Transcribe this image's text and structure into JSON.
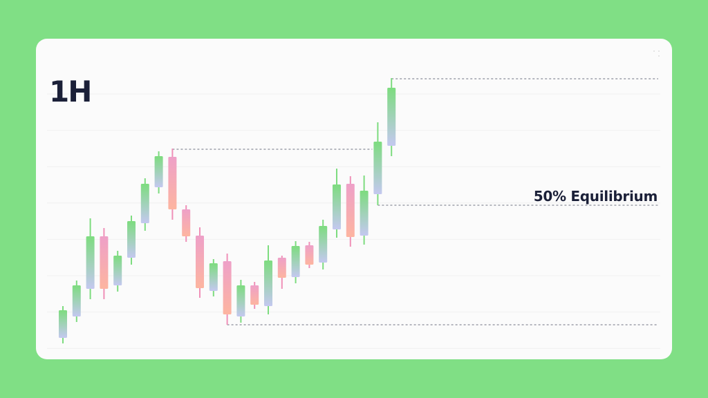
{
  "timeframe_label": "1H",
  "equilibrium_label": "50% Equilibrium",
  "colors": {
    "background": "#80df85",
    "card": "#fbfbfb",
    "bull_top": "#7ddc7f",
    "bull_bottom": "#c4c8f0",
    "bear_top": "#eea0c8",
    "bear_bottom": "#fdb5a0",
    "bull_wick": "#7ddc7f",
    "bear_wick": "#f090b8",
    "level_line": "#8a8d99",
    "text": "#1b2038"
  },
  "chart_data": {
    "type": "candlestick",
    "title": "1H",
    "grid": true,
    "candles": [
      {
        "o": 31,
        "h": 77,
        "l": 23,
        "c": 71
      },
      {
        "o": 62,
        "h": 114,
        "l": 54,
        "c": 107
      },
      {
        "o": 102,
        "h": 204,
        "l": 87,
        "c": 178
      },
      {
        "o": 178,
        "h": 190,
        "l": 87,
        "c": 102
      },
      {
        "o": 107,
        "h": 157,
        "l": 98,
        "c": 150
      },
      {
        "o": 147,
        "h": 208,
        "l": 137,
        "c": 200
      },
      {
        "o": 197,
        "h": 262,
        "l": 186,
        "c": 254
      },
      {
        "o": 249,
        "h": 301,
        "l": 240,
        "c": 294
      },
      {
        "o": 293,
        "h": 305,
        "l": 202,
        "c": 217
      },
      {
        "o": 217,
        "h": 223,
        "l": 170,
        "c": 178
      },
      {
        "o": 179,
        "h": 191,
        "l": 89,
        "c": 103
      },
      {
        "o": 99,
        "h": 145,
        "l": 91,
        "c": 139
      },
      {
        "o": 142,
        "h": 153,
        "l": 50,
        "c": 65
      },
      {
        "o": 62,
        "h": 115,
        "l": 53,
        "c": 107
      },
      {
        "o": 107,
        "h": 112,
        "l": 73,
        "c": 79
      },
      {
        "o": 77,
        "h": 165,
        "l": 65,
        "c": 143
      },
      {
        "o": 147,
        "h": 150,
        "l": 102,
        "c": 118
      },
      {
        "o": 119,
        "h": 171,
        "l": 110,
        "c": 164
      },
      {
        "o": 165,
        "h": 170,
        "l": 132,
        "c": 137
      },
      {
        "o": 140,
        "h": 202,
        "l": 130,
        "c": 193
      },
      {
        "o": 188,
        "h": 276,
        "l": 176,
        "c": 253
      },
      {
        "o": 254,
        "h": 265,
        "l": 163,
        "c": 177
      },
      {
        "o": 179,
        "h": 266,
        "l": 166,
        "c": 244
      },
      {
        "o": 239,
        "h": 343,
        "l": 223,
        "c": 315
      },
      {
        "o": 309,
        "h": 407,
        "l": 294,
        "c": 393
      }
    ],
    "levels": [
      {
        "price": 304,
        "from_candle": 8,
        "to_candle": 23,
        "style": "dashed"
      },
      {
        "price": 406,
        "from_candle": 24,
        "to_candle": "end",
        "style": "dashed"
      },
      {
        "price": 223,
        "from_candle": 23,
        "to_candle": "end",
        "style": "dashed",
        "label": "50% Equilibrium"
      },
      {
        "price": 50,
        "from_candle": 12,
        "to_candle": "end",
        "style": "dashed"
      }
    ]
  }
}
